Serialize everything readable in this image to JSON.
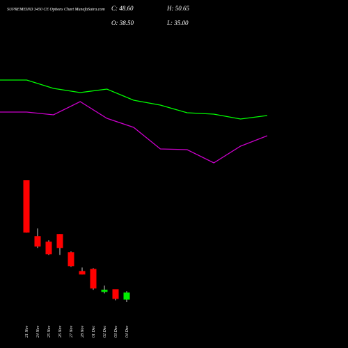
{
  "header": {
    "title": "SUPREMEIND 3450 CE Options Chart MunafaSutra.com",
    "close": "C: 48.60",
    "high": "H: 50.65",
    "open": "O: 38.50",
    "low": "L: 35.00"
  },
  "chart_data": [
    {
      "type": "line",
      "categories": [
        null,
        null,
        null,
        null,
        null,
        null,
        null,
        null,
        null,
        null,
        null
      ],
      "series": [
        {
          "color": "#00ff00",
          "values": [
            385,
            385,
            373,
            367,
            372,
            356,
            349,
            338,
            336,
            329,
            334
          ]
        },
        {
          "color": "#cc00cc",
          "values": [
            339,
            339,
            335,
            354,
            330,
            317,
            286,
            285,
            266,
            290,
            305
          ]
        }
      ]
    },
    {
      "type": "candlestick",
      "up_color": "#00ee00",
      "down_color": "#ff0000",
      "categories": [
        "21 Nov",
        "24 Nov",
        "25 Nov",
        "26 Nov",
        "27 Nov",
        "28 Nov",
        "01 Dec",
        "02 Dec",
        "03 Dec",
        "04 Dec"
      ],
      "open": [
        209.5,
        129.5,
        121.5,
        132.5,
        106.5,
        79.5,
        82.5,
        49.5,
        53.5,
        38.5
      ],
      "high": [
        209.5,
        140.5,
        123.5,
        132.5,
        107.5,
        84.5,
        83.5,
        58.5,
        53.5,
        50.65
      ],
      "low": [
        134.5,
        112.5,
        102.5,
        102.5,
        85.5,
        74.5,
        52.5,
        47.5,
        37.5,
        35.0
      ],
      "close": [
        134.5,
        114.5,
        103.5,
        112.5,
        86.5,
        74.5,
        54.5,
        52.5,
        39.5,
        48.6
      ]
    }
  ]
}
